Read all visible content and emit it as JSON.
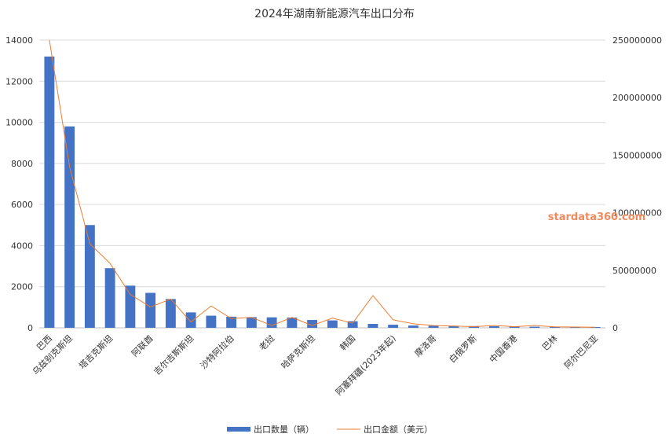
{
  "chart_data": {
    "type": "bar",
    "title": "2024年湖南新能源汽车出口分布",
    "watermark": "stardata360.com",
    "categories": [
      "巴西",
      "乌兹别克斯坦",
      "",
      "塔吉克斯坦",
      "",
      "阿联酋",
      "",
      "吉尔吉斯斯坦",
      "",
      "沙特阿拉伯",
      "",
      "老挝",
      "",
      "哈萨克斯坦",
      "",
      "韩国",
      "",
      "阿塞拜疆(2023年起)",
      "",
      "摩洛哥",
      "",
      "白俄罗斯",
      "",
      "中国香港",
      "",
      "巴林",
      "",
      "阿尔巴尼亚"
    ],
    "series": [
      {
        "name": "出口数量（辆）",
        "type": "bar",
        "axis": "left",
        "color": "#4472c4",
        "values": [
          13200,
          9800,
          5000,
          2900,
          2050,
          1700,
          1400,
          750,
          590,
          540,
          520,
          510,
          500,
          380,
          360,
          320,
          190,
          150,
          110,
          100,
          90,
          85,
          75,
          65,
          55,
          50,
          45,
          40
        ]
      },
      {
        "name": "出口金额（美元）",
        "type": "line",
        "axis": "right",
        "color": "#ed7d31",
        "values": [
          250000000,
          140000000,
          73000000,
          56000000,
          29000000,
          18000000,
          25000000,
          5000000,
          19000000,
          8000000,
          9000000,
          2000000,
          9000000,
          2000000,
          8500000,
          4000000,
          28000000,
          7000000,
          3500000,
          2000000,
          1500000,
          1000000,
          2000000,
          1000000,
          2000000,
          800000,
          700000,
          500000
        ]
      }
    ],
    "y_left": {
      "min": 0,
      "max": 14000,
      "ticks": [
        0,
        2000,
        4000,
        6000,
        8000,
        10000,
        12000,
        14000
      ]
    },
    "y_right": {
      "min": 0,
      "max": 250000000,
      "ticks": [
        0,
        50000000,
        100000000,
        150000000,
        200000000,
        250000000
      ]
    },
    "grid": true,
    "legend_position": "bottom"
  }
}
